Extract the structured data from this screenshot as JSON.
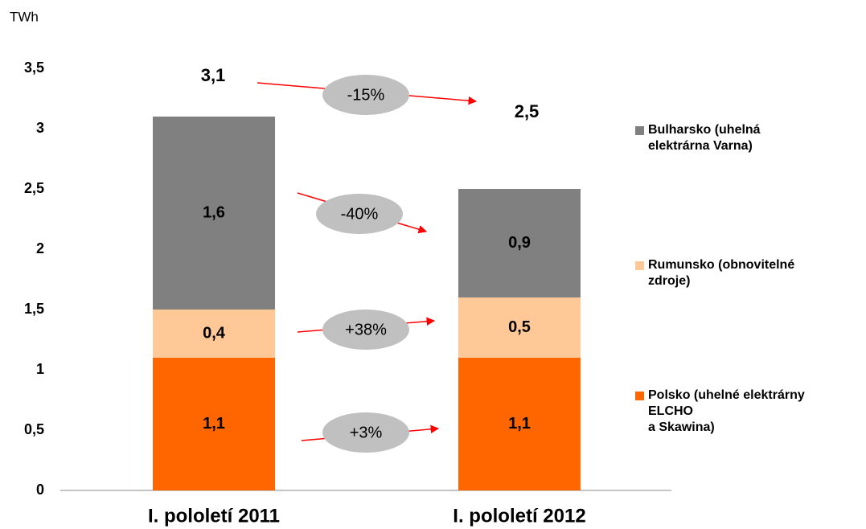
{
  "chart_data": {
    "type": "stacked_bar",
    "y_axis_label": "TWh",
    "categories": [
      "I. pololetí 2011",
      "I. pololetí 2012"
    ],
    "series": [
      {
        "name": "Polsko (uhelné elektrárny\nELCHO\na Skawina)",
        "color": "#ff6600",
        "values": [
          1.1,
          1.1
        ],
        "value_labels": [
          "1,1",
          "1,1"
        ]
      },
      {
        "name": "Rumunsko (obnovitelné\nzdroje)",
        "color": "#ffc896",
        "values": [
          0.4,
          0.5
        ],
        "value_labels": [
          "0,4",
          "0,5"
        ]
      },
      {
        "name": "Bulharsko (uhelná\nelektrárna Varna)",
        "color": "#808080",
        "values": [
          1.6,
          0.9
        ],
        "value_labels": [
          "1,6",
          "0,9"
        ]
      }
    ],
    "totals": {
      "values": [
        3.1,
        2.5
      ],
      "value_labels": [
        "3,1",
        "2,5"
      ]
    },
    "annotations": [
      "-15%",
      "-40%",
      "+38%",
      "+3%"
    ],
    "ylim": [
      0,
      3.5
    ],
    "yticks": [
      0,
      {
        "value": 0.5,
        "label": "0,5"
      },
      1,
      {
        "value": 1.5,
        "label": "1,5"
      },
      2,
      {
        "value": 2.5,
        "label": "2,5"
      },
      3,
      {
        "value": 3.5,
        "label": "3,5"
      }
    ],
    "grid": false
  }
}
